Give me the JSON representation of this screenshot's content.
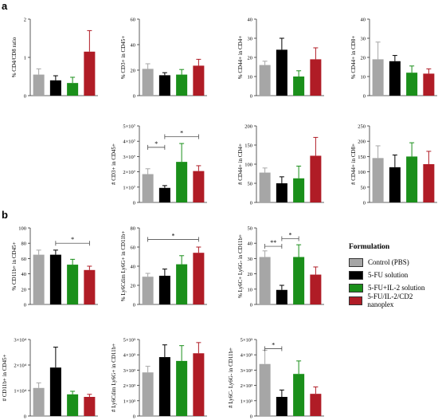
{
  "figure": {
    "section_a_label": "a",
    "section_b_label": "b"
  },
  "colors": {
    "control": "#a6a6a6",
    "fu": "#000000",
    "fu_il2": "#1a8f1a",
    "nanoplex": "#b01c26"
  },
  "legend": {
    "title": "Formulation",
    "items": [
      {
        "label": "Control (PBS)",
        "color": "#a6a6a6"
      },
      {
        "label": "5-FU solution",
        "color": "#000000"
      },
      {
        "label": "5-FU+IL-2 solution",
        "color": "#1a8f1a"
      },
      {
        "label": "5-FU/IL-2/CD2 nanoplex",
        "color": "#b01c26"
      }
    ]
  },
  "chart_data": [
    {
      "id": "a1",
      "type": "bar",
      "ylabel": "% CD4/CD8 ratio",
      "ylim": [
        0,
        2
      ],
      "yticks": [
        "0",
        "1",
        "2"
      ],
      "values": [
        0.55,
        0.4,
        0.33,
        1.15
      ],
      "errors": [
        0.15,
        0.12,
        0.15,
        0.55
      ],
      "significance": []
    },
    {
      "id": "a2",
      "type": "bar",
      "ylabel": "% CD3+ in CD45+",
      "ylim": [
        0,
        60
      ],
      "yticks": [
        "0",
        "20",
        "40",
        "60"
      ],
      "values": [
        21,
        16,
        16.5,
        23.5
      ],
      "errors": [
        4,
        2,
        4,
        5
      ],
      "significance": []
    },
    {
      "id": "a3",
      "type": "bar",
      "ylabel": "% CD44+ in CD4+",
      "ylim": [
        0,
        40
      ],
      "yticks": [
        "0",
        "10",
        "20",
        "30",
        "40"
      ],
      "values": [
        16,
        24,
        10,
        19
      ],
      "errors": [
        2,
        6,
        3,
        6
      ],
      "significance": []
    },
    {
      "id": "a4",
      "type": "bar",
      "ylabel": "% CD44+ in CD8+",
      "ylim": [
        0,
        40
      ],
      "yticks": [
        "0",
        "10",
        "20",
        "30",
        "40"
      ],
      "values": [
        19,
        18,
        12,
        11.5
      ],
      "errors": [
        9,
        3,
        3.5,
        2.5
      ],
      "significance": []
    },
    {
      "id": "a5",
      "type": "bar",
      "ylabel": "# CD3+ in CD45+",
      "ylim": [
        0,
        5
      ],
      "yticks": [
        "0",
        "1×10⁷",
        "2×10⁷",
        "3×10⁷",
        "4×10⁷",
        "5×10⁷"
      ],
      "values": [
        1.85,
        0.95,
        2.65,
        2.05
      ],
      "errors": [
        0.35,
        0.15,
        1.2,
        0.35
      ],
      "significance": [
        {
          "from": 0,
          "to": 1,
          "label": "*",
          "level": 3.6
        },
        {
          "from": 1,
          "to": 3,
          "label": "*",
          "level": 4.3
        }
      ]
    },
    {
      "id": "a6",
      "type": "bar",
      "ylabel": "# CD44+ in CD4+",
      "ylim": [
        0,
        200
      ],
      "yticks": [
        "0",
        "50",
        "100",
        "150",
        "200"
      ],
      "values": [
        78,
        50,
        63,
        122
      ],
      "errors": [
        12,
        17,
        32,
        48
      ],
      "significance": []
    },
    {
      "id": "a7",
      "type": "bar",
      "ylabel": "# CD44+ in CD8+",
      "ylim": [
        0,
        250
      ],
      "yticks": [
        "0",
        "50",
        "100",
        "150",
        "200",
        "250"
      ],
      "values": [
        145,
        115,
        150,
        125
      ],
      "errors": [
        40,
        40,
        45,
        42
      ],
      "significance": []
    },
    {
      "id": "b1",
      "type": "bar",
      "ylabel": "% CD11b+ in CD45+",
      "ylim": [
        0,
        100
      ],
      "yticks": [
        "0",
        "20",
        "40",
        "60",
        "80",
        "100"
      ],
      "values": [
        65,
        65,
        52,
        45
      ],
      "errors": [
        6,
        6,
        7,
        5
      ],
      "significance": [
        {
          "from": 1,
          "to": 3,
          "label": "*",
          "level": 80
        }
      ]
    },
    {
      "id": "b2",
      "type": "bar",
      "ylabel": "% Ly6Cdim Ly6G+ in CD11b+",
      "ylim": [
        0,
        80
      ],
      "yticks": [
        "0",
        "20",
        "40",
        "60",
        "80"
      ],
      "values": [
        29,
        30,
        42,
        54
      ],
      "errors": [
        3.5,
        7,
        9,
        6
      ],
      "significance": [
        {
          "from": 0,
          "to": 3,
          "label": "*",
          "level": 68
        }
      ]
    },
    {
      "id": "b3",
      "type": "bar",
      "ylabel": "% Ly6C+ Ly6G- in CD11b+",
      "ylim": [
        0,
        50
      ],
      "yticks": [
        "0",
        "10",
        "20",
        "30",
        "40",
        "50"
      ],
      "values": [
        31,
        9.5,
        31,
        19.5
      ],
      "errors": [
        4,
        3,
        8,
        5
      ],
      "significance": [
        {
          "from": 0,
          "to": 1,
          "label": "**",
          "level": 38
        },
        {
          "from": 1,
          "to": 2,
          "label": "*",
          "level": 43
        }
      ]
    },
    {
      "id": "b4",
      "type": "bar",
      "ylabel": "# CD11b+ in CD45+",
      "ylim": [
        0,
        3
      ],
      "yticks": [
        "0",
        "1×10⁴",
        "2×10⁴",
        "3×10⁴"
      ],
      "values": [
        1.1,
        1.9,
        0.85,
        0.75
      ],
      "errors": [
        0.2,
        0.8,
        0.12,
        0.1
      ],
      "significance": []
    },
    {
      "id": "b5",
      "type": "bar",
      "ylabel": "# Ly6Cdim Ly6G+ in CD11b+",
      "ylim": [
        0,
        5
      ],
      "yticks": [
        "0",
        "1×10³",
        "2×10³",
        "3×10³",
        "4×10³",
        "5×10³"
      ],
      "values": [
        2.85,
        3.85,
        3.6,
        4.1
      ],
      "errors": [
        0.4,
        0.8,
        1.0,
        0.7
      ],
      "significance": []
    },
    {
      "id": "b6",
      "type": "bar",
      "ylabel": "# Ly6C- Ly6G- in CD11b+",
      "ylim": [
        0,
        5
      ],
      "yticks": [
        "0",
        "1×10³",
        "2×10³",
        "3×10³",
        "4×10³",
        "5×10³"
      ],
      "values": [
        3.4,
        1.25,
        2.75,
        1.45
      ],
      "errors": [
        0.9,
        0.45,
        0.85,
        0.45
      ],
      "significance": [
        {
          "from": 0,
          "to": 1,
          "label": "*",
          "level": 4.4
        }
      ]
    }
  ]
}
